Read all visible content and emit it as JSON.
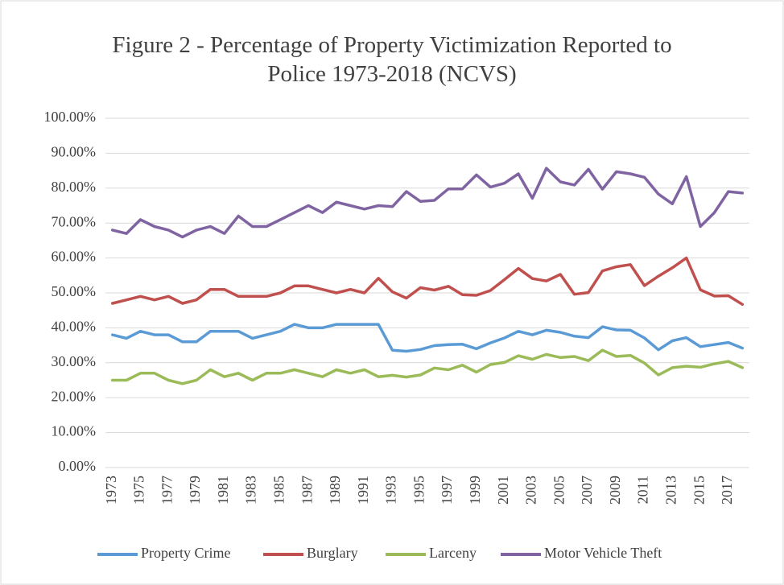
{
  "chart_data": {
    "type": "line",
    "title": "Figure 2 - Percentage of Property Victimization Reported to Police 1973-2018 (NCVS)",
    "categories": [
      "1973",
      null,
      "1975",
      null,
      "1977",
      null,
      "1979",
      null,
      "1981",
      null,
      "1983",
      null,
      "1985",
      null,
      "1987",
      null,
      "1989",
      null,
      "1991",
      null,
      "1993",
      null,
      "1995",
      null,
      "1997",
      null,
      "1999",
      null,
      "2001",
      null,
      "2003",
      null,
      "2005",
      null,
      "2007",
      null,
      "2009",
      null,
      "2011",
      null,
      "2013",
      null,
      "2015",
      null,
      "2017",
      null
    ],
    "series": [
      {
        "name": "Property Crime",
        "color": "#5b9bd5",
        "values": [
          38,
          37,
          39,
          38,
          38,
          36,
          36,
          39,
          39,
          39,
          37,
          38,
          39,
          41,
          40,
          40,
          41,
          41,
          41,
          41,
          33.6,
          33.3,
          33.8,
          34.9,
          35.2,
          35.3,
          34,
          35.7,
          37.1,
          39,
          38,
          39.3,
          38.7,
          37.6,
          37.2,
          40.3,
          39.4,
          39.3,
          37.1,
          33.7,
          36.3,
          37.2,
          34.6,
          35.2,
          35.8,
          34.2
        ]
      },
      {
        "name": "Burglary",
        "color": "#c0504d",
        "values": [
          47,
          48,
          49,
          48,
          49,
          47,
          48,
          51,
          51,
          49,
          49,
          49,
          50,
          52,
          52,
          51,
          50,
          51,
          50,
          54.2,
          50.3,
          48.5,
          51.5,
          50.8,
          51.9,
          49.5,
          49.3,
          50.7,
          53.8,
          57,
          54.1,
          53.4,
          55.3,
          49.6,
          50.1,
          56.3,
          57.5,
          58.1,
          52.1,
          54.8,
          57.2,
          60,
          50.9,
          49.1,
          49.2,
          46.7
        ]
      },
      {
        "name": "Larceny",
        "color": "#9bbb59",
        "values": [
          25,
          25,
          27,
          27,
          25,
          24,
          25,
          28,
          26,
          27,
          25,
          27,
          27,
          28,
          27,
          26,
          28,
          27,
          28,
          26,
          26.4,
          25.9,
          26.5,
          28.5,
          28,
          29.3,
          27.3,
          29.5,
          30.1,
          32,
          31,
          32.4,
          31.5,
          31.8,
          30.6,
          33.6,
          31.8,
          32.1,
          29.9,
          26.5,
          28.6,
          29,
          28.7,
          29.7,
          30.4,
          28.6
        ]
      },
      {
        "name": "Motor Vehicle Theft",
        "color": "#8064a2",
        "values": [
          68,
          67,
          71,
          69,
          68,
          66,
          68,
          69,
          67,
          72,
          69,
          69,
          71,
          73,
          75,
          73,
          76,
          75,
          74,
          75,
          74.7,
          79,
          76.2,
          76.5,
          79.8,
          79.8,
          83.8,
          80.3,
          81.4,
          84.1,
          77.1,
          85.7,
          81.8,
          80.9,
          85.4,
          79.7,
          84.7,
          84.1,
          83.1,
          78.3,
          75.5,
          83.3,
          69,
          73,
          79,
          78.6
        ]
      }
    ],
    "ylim": [
      0,
      100
    ],
    "yticks": [
      {
        "value": 0,
        "label": "0.00%"
      },
      {
        "value": 10,
        "label": "10.00%"
      },
      {
        "value": 20,
        "label": "20.00%"
      },
      {
        "value": 30,
        "label": "30.00%"
      },
      {
        "value": 40,
        "label": "40.00%"
      },
      {
        "value": 50,
        "label": "50.00%"
      },
      {
        "value": 60,
        "label": "60.00%"
      },
      {
        "value": 70,
        "label": "70.00%"
      },
      {
        "value": 80,
        "label": "80.00%"
      },
      {
        "value": 90,
        "label": "90.00%"
      },
      {
        "value": 100,
        "label": "100.00%"
      }
    ],
    "grid": true,
    "legend": "bottom"
  }
}
